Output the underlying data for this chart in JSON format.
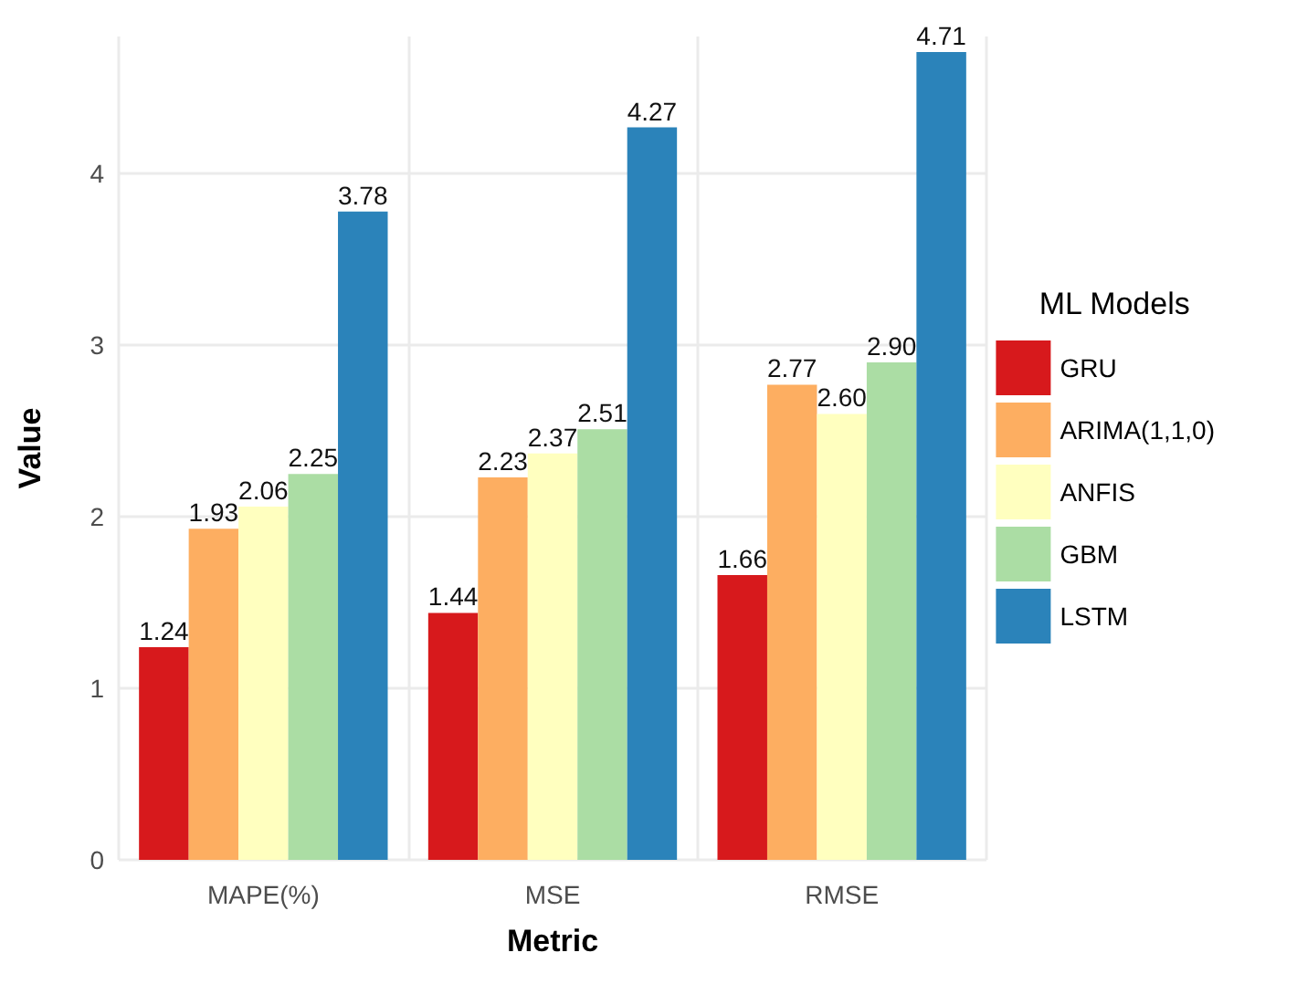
{
  "chart_data": {
    "type": "bar",
    "xlabel": "Metric",
    "ylabel": "Value",
    "legend_title": "ML Models",
    "categories": [
      "MAPE(%)",
      "MSE",
      "RMSE"
    ],
    "series": [
      {
        "name": "GRU",
        "color": "#d7191c",
        "values": [
          1.24,
          1.44,
          1.66
        ],
        "value_labels": [
          "1.24",
          "1.44",
          "1.66"
        ]
      },
      {
        "name": "ARIMA(1,1,0)",
        "color": "#fdae61",
        "values": [
          1.93,
          2.23,
          2.77
        ],
        "value_labels": [
          "1.93",
          "2.23",
          "2.77"
        ]
      },
      {
        "name": "ANFIS",
        "color": "#ffffbf",
        "values": [
          2.06,
          2.37,
          2.6
        ],
        "value_labels": [
          "2.06",
          "2.37",
          "2.60"
        ]
      },
      {
        "name": "GBM",
        "color": "#abdda4",
        "values": [
          2.25,
          2.51,
          2.9
        ],
        "value_labels": [
          "2.25",
          "2.51",
          "2.90"
        ]
      },
      {
        "name": "LSTM",
        "color": "#2b83ba",
        "values": [
          3.78,
          4.27,
          4.71
        ],
        "value_labels": [
          "3.78",
          "4.27",
          "4.71"
        ]
      }
    ],
    "ylim": [
      0,
      4.8
    ],
    "yticks": [
      0,
      1,
      2,
      3,
      4
    ],
    "grid": true,
    "legend": "right"
  }
}
